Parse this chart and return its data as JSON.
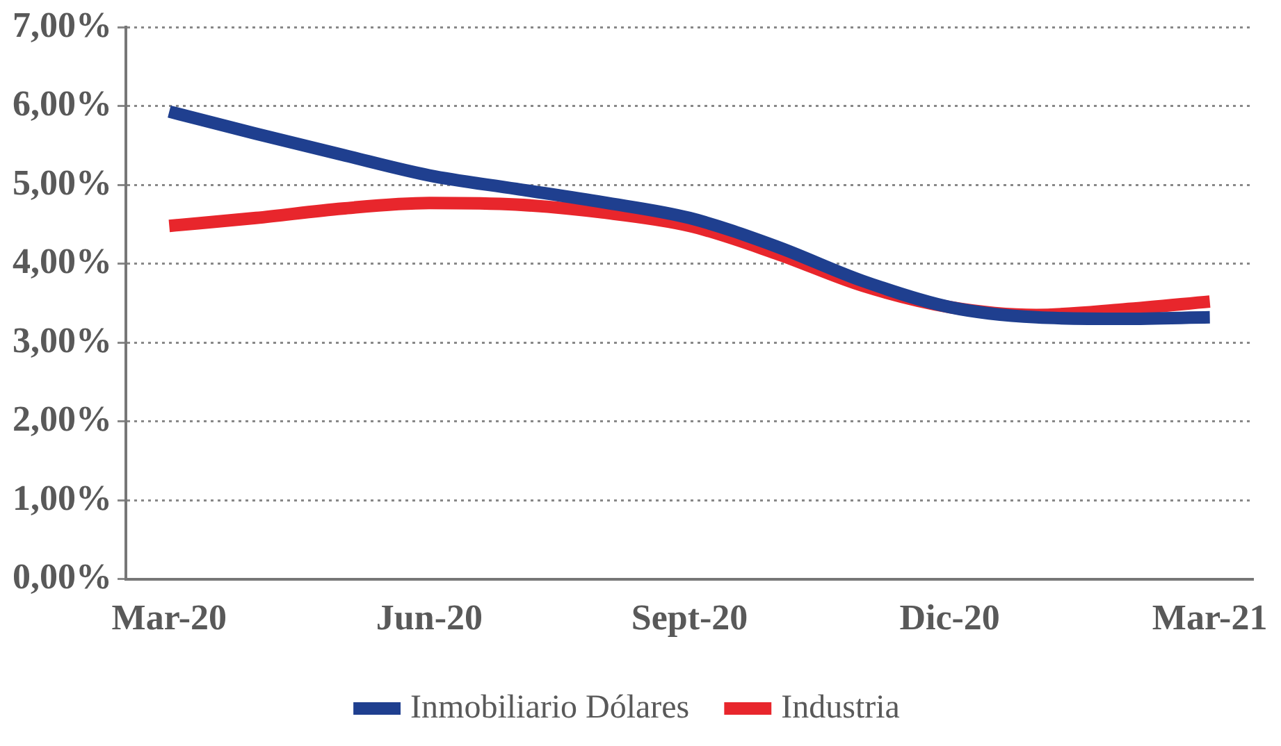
{
  "chart_data": {
    "type": "line",
    "categories": [
      "Mar-20",
      null,
      null,
      "Jun-20",
      null,
      null,
      "Sept-20",
      null,
      null,
      "Dic-20",
      null,
      null,
      "Mar-21"
    ],
    "series": [
      {
        "name": "Inmobiliario Dólares",
        "color": "#1f3f8f",
        "values": [
          5.93,
          5.65,
          5.38,
          5.12,
          4.95,
          4.78,
          4.58,
          4.22,
          3.78,
          3.45,
          3.32,
          3.3,
          3.32
        ]
      },
      {
        "name": "Industria",
        "color": "#e8262c",
        "values": [
          4.48,
          4.58,
          4.7,
          4.77,
          4.75,
          4.65,
          4.48,
          4.13,
          3.72,
          3.45,
          3.35,
          3.42,
          3.52
        ]
      }
    ],
    "ylim": [
      0,
      7
    ],
    "yticks": [
      {
        "value": 0,
        "label": "0,00%"
      },
      {
        "value": 1,
        "label": "1,00%"
      },
      {
        "value": 2,
        "label": "2,00%"
      },
      {
        "value": 3,
        "label": "3,00%"
      },
      {
        "value": 4,
        "label": "4,00%"
      },
      {
        "value": 5,
        "label": "5,00%"
      },
      {
        "value": 6,
        "label": "6,00%"
      },
      {
        "value": 7,
        "label": "7,00%"
      }
    ],
    "grid": "y",
    "legend": "bottom",
    "marker": "none",
    "line_style": "solid"
  }
}
